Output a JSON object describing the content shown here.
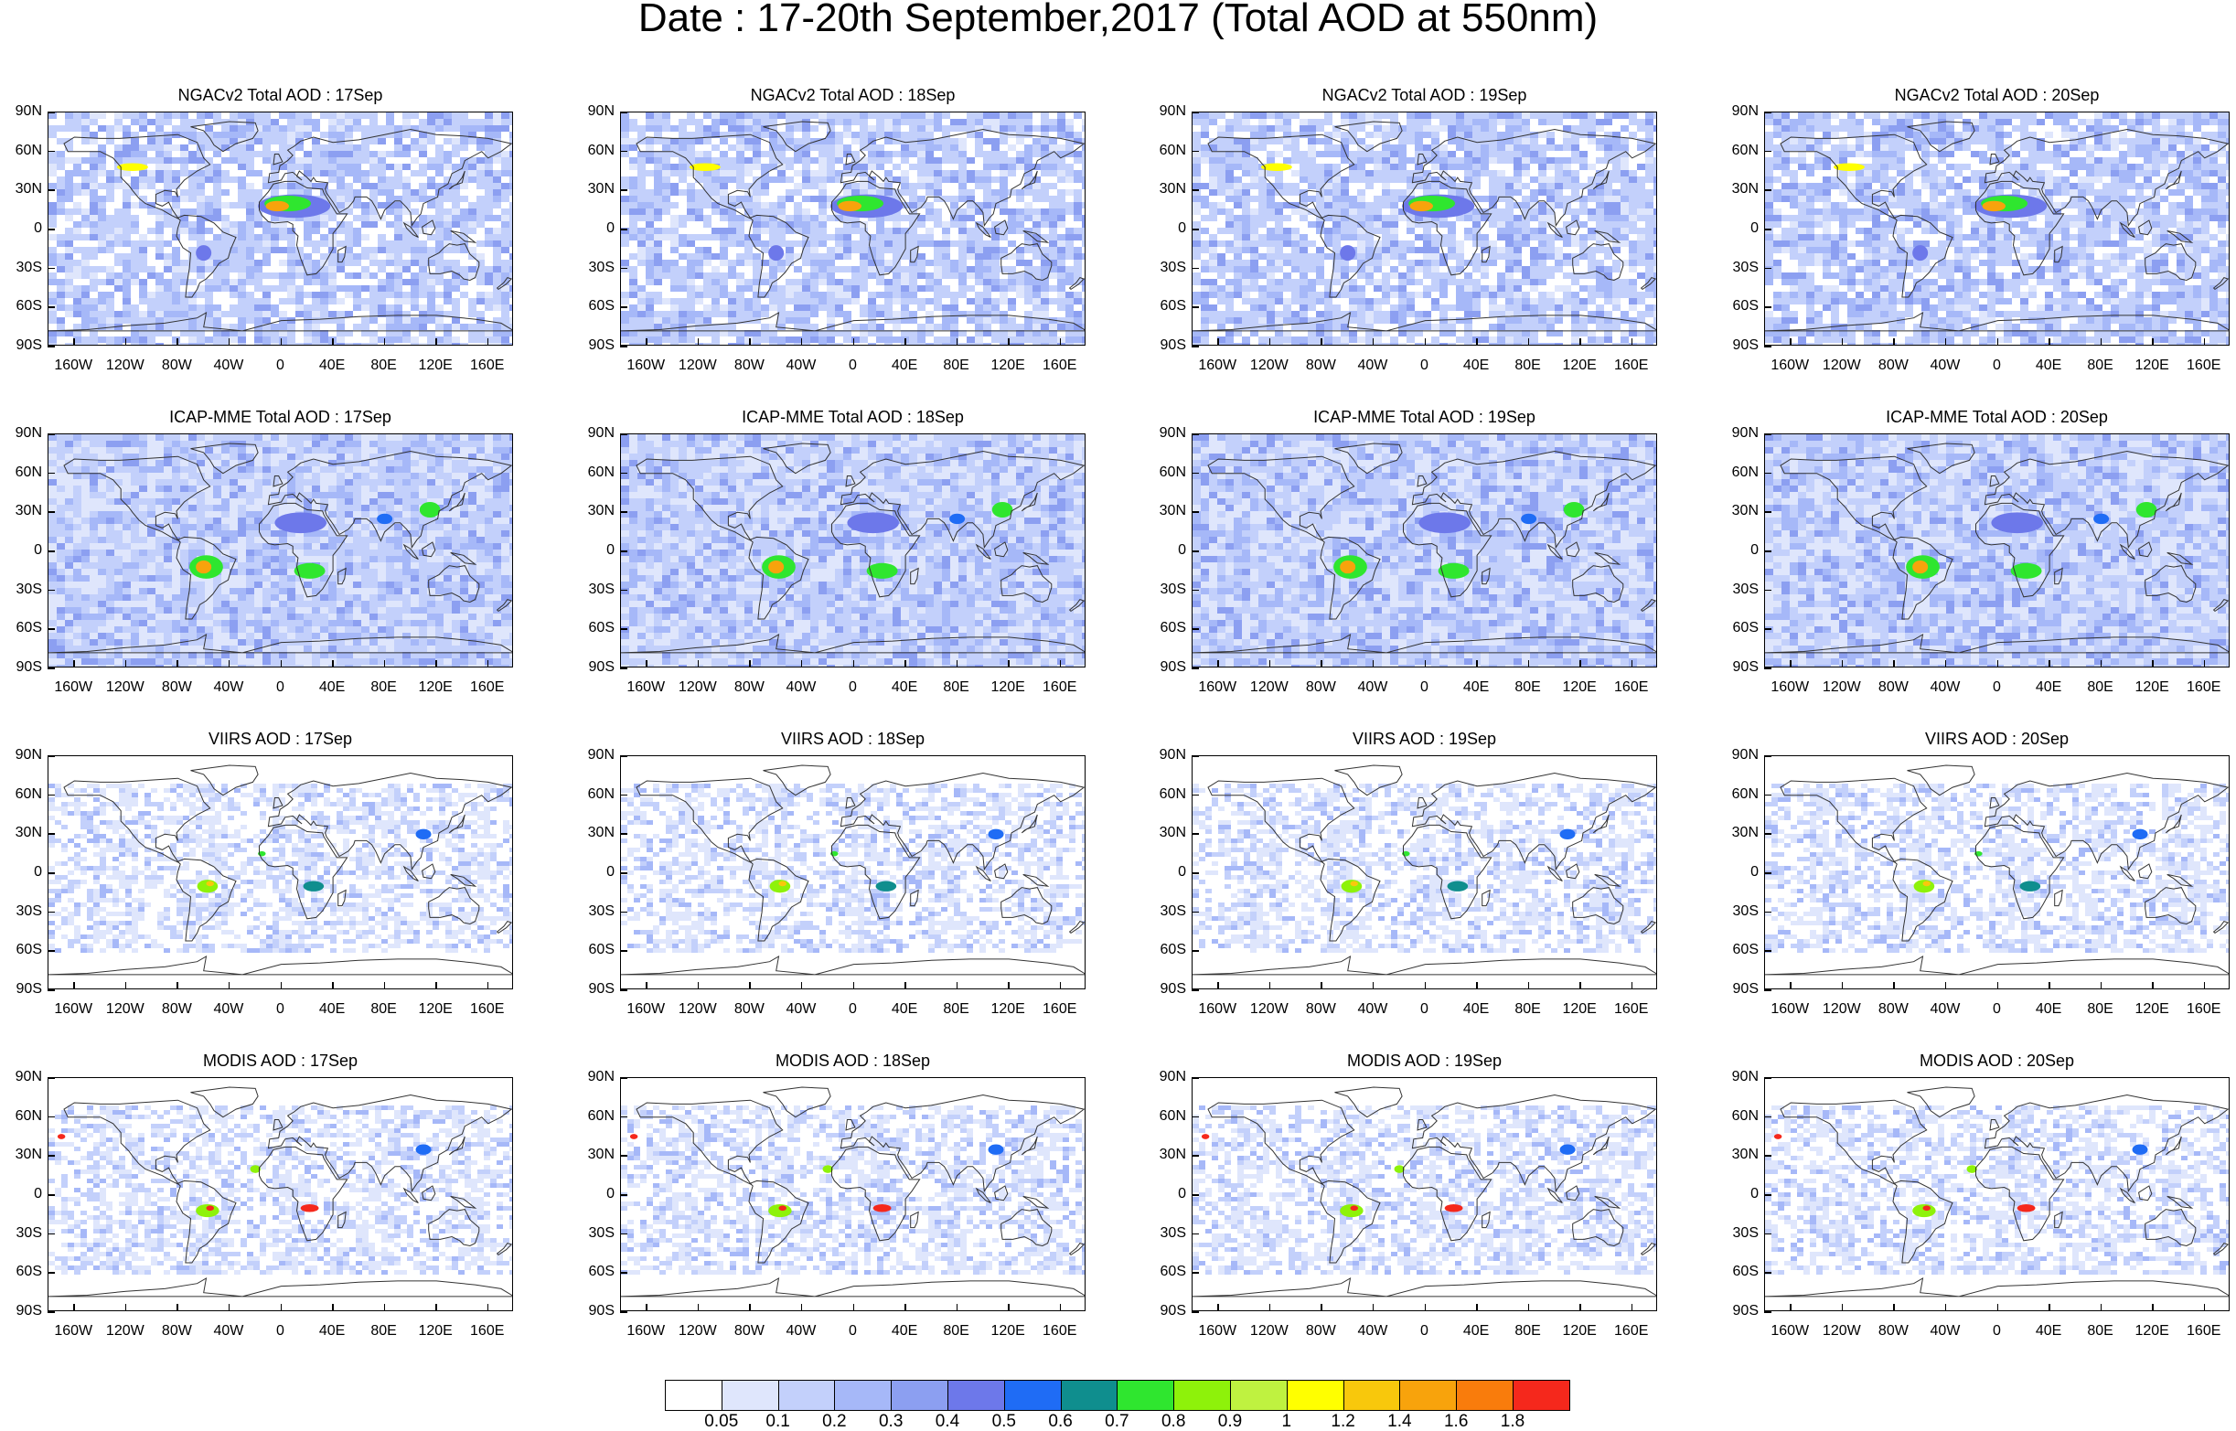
{
  "title": "Date : 17-20th September,2017 (Total AOD at 550nm)",
  "panels": [
    {
      "title": "NGACv2 Total AOD : 17Sep",
      "dataset": "NGACv2",
      "day": 17
    },
    {
      "title": "NGACv2 Total AOD : 18Sep",
      "dataset": "NGACv2",
      "day": 18
    },
    {
      "title": "NGACv2 Total AOD : 19Sep",
      "dataset": "NGACv2",
      "day": 19
    },
    {
      "title": "NGACv2 Total AOD : 20Sep",
      "dataset": "NGACv2",
      "day": 20
    },
    {
      "title": "ICAP-MME Total AOD : 17Sep",
      "dataset": "ICAP-MME",
      "day": 17
    },
    {
      "title": "ICAP-MME Total AOD : 18Sep",
      "dataset": "ICAP-MME",
      "day": 18
    },
    {
      "title": "ICAP-MME Total AOD : 19Sep",
      "dataset": "ICAP-MME",
      "day": 19
    },
    {
      "title": "ICAP-MME Total AOD : 20Sep",
      "dataset": "ICAP-MME",
      "day": 20
    },
    {
      "title": "VIIRS AOD : 17Sep",
      "dataset": "VIIRS",
      "day": 17
    },
    {
      "title": "VIIRS AOD : 18Sep",
      "dataset": "VIIRS",
      "day": 18
    },
    {
      "title": "VIIRS AOD : 19Sep",
      "dataset": "VIIRS",
      "day": 19
    },
    {
      "title": "VIIRS AOD : 20Sep",
      "dataset": "VIIRS",
      "day": 20
    },
    {
      "title": "MODIS AOD : 17Sep",
      "dataset": "MODIS",
      "day": 17
    },
    {
      "title": "MODIS AOD : 18Sep",
      "dataset": "MODIS",
      "day": 18
    },
    {
      "title": "MODIS AOD : 19Sep",
      "dataset": "MODIS",
      "day": 19
    },
    {
      "title": "MODIS AOD : 20Sep",
      "dataset": "MODIS",
      "day": 20
    }
  ],
  "lat_labels": [
    "90N",
    "60N",
    "30N",
    "0",
    "30S",
    "60S",
    "90S"
  ],
  "lon_labels": [
    "160W",
    "120W",
    "80W",
    "40W",
    "0",
    "40E",
    "80E",
    "120E",
    "160E"
  ],
  "lat_values": [
    90,
    60,
    30,
    0,
    -30,
    -60,
    -90
  ],
  "lon_values": [
    -160,
    -120,
    -80,
    -40,
    0,
    40,
    80,
    120,
    160
  ],
  "colorbar": {
    "colors": [
      "#ffffff",
      "#dfe6fc",
      "#c3d0fb",
      "#a6b8f8",
      "#8c9ff1",
      "#6d78ea",
      "#1f6cf5",
      "#0f8e8e",
      "#2fe62f",
      "#8ef20a",
      "#bff240",
      "#ffff00",
      "#f8c80c",
      "#f8a30c",
      "#f97c0c",
      "#f5281c"
    ],
    "labels": [
      "0.05",
      "0.1",
      "0.2",
      "0.3",
      "0.4",
      "0.5",
      "0.6",
      "0.7",
      "0.8",
      "0.9",
      "1",
      "1.2",
      "1.4",
      "1.6",
      "1.8"
    ]
  },
  "colors": {
    "land_outline": "#333333",
    "background": "#ffffff"
  }
}
